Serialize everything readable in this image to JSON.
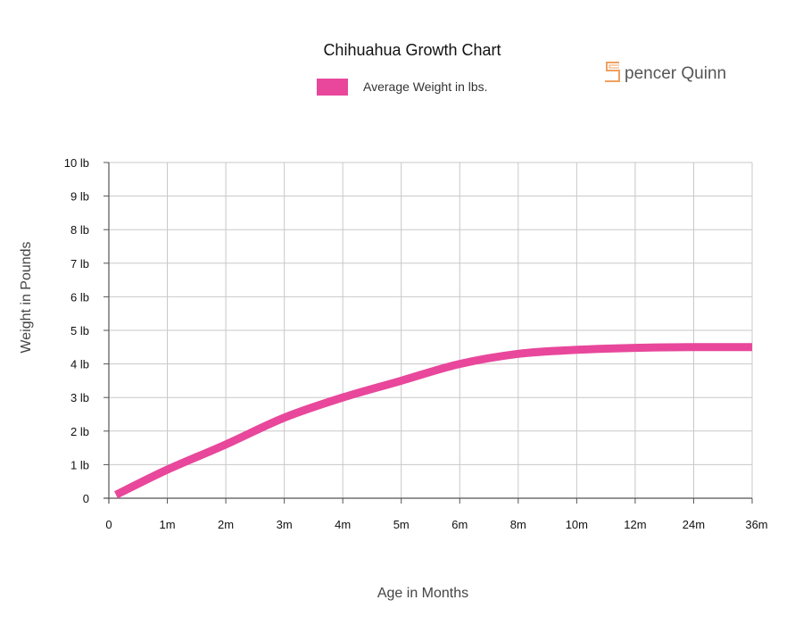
{
  "brand": {
    "initial": "S",
    "rest": "pencer Quinn"
  },
  "chart_data": {
    "type": "line",
    "title": "Chihuahua Growth Chart",
    "xlabel": "Age in Months",
    "ylabel": "Weight in Pounds",
    "categories": [
      "0",
      "1m",
      "2m",
      "3m",
      "4m",
      "5m",
      "6m",
      "8m",
      "10m",
      "12m",
      "24m",
      "36m"
    ],
    "series": [
      {
        "name": "Average Weight in lbs.",
        "color": "#e8479b",
        "values": [
          0.1,
          0.85,
          1.6,
          2.4,
          3.0,
          3.5,
          4.0,
          4.3,
          4.42,
          4.48,
          4.5,
          4.5
        ]
      }
    ],
    "y_tick_labels": [
      "0",
      "1 lb",
      "2 lb",
      "3 lb",
      "4 lb",
      "5 lb",
      "6 lb",
      "7 lb",
      "8 lb",
      "9 lb",
      "10 lb"
    ],
    "ylim": [
      0,
      10
    ],
    "grid": true,
    "legend_position": "top"
  }
}
